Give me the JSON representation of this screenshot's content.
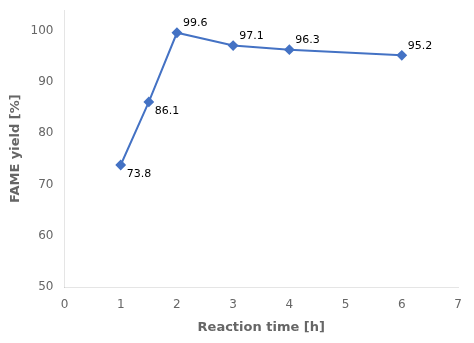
{
  "chart_data": {
    "type": "line",
    "x": [
      1,
      1.5,
      2,
      3,
      4,
      6
    ],
    "values": [
      73.8,
      86.1,
      99.6,
      97.1,
      96.3,
      95.2
    ],
    "color": "#4472C4",
    "marker": "diamond",
    "xlabel": "Reaction time [h]",
    "ylabel": "FAME yield [%]",
    "xlim": [
      0,
      7
    ],
    "ylim": [
      50,
      104
    ],
    "xticks": [
      0,
      1,
      2,
      3,
      4,
      5,
      6,
      7
    ],
    "yticks": [
      50,
      60,
      70,
      80,
      90,
      100
    ],
    "data_labels": true,
    "grid": false
  }
}
